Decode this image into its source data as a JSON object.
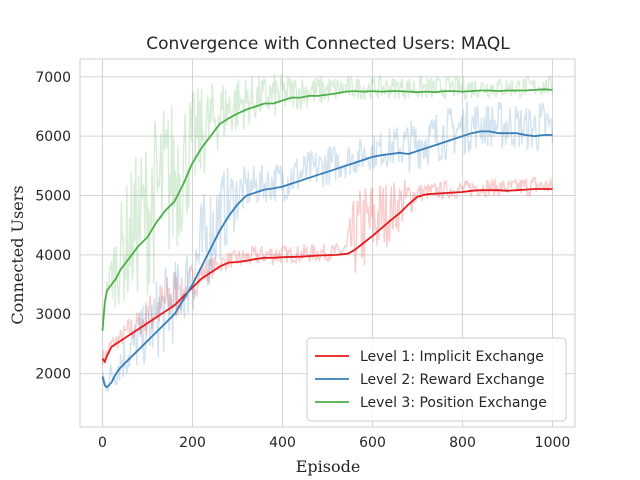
{
  "chart_data": {
    "type": "line",
    "title": "Convergence with Connected Users: MAQL",
    "xlabel": "Episode",
    "ylabel": "Connected Users",
    "xlim": [
      -50,
      1050
    ],
    "ylim": [
      1100,
      7300
    ],
    "xticks": [
      "0",
      "200",
      "400",
      "600",
      "800",
      "1000"
    ],
    "yticks": [
      "2000",
      "3000",
      "4000",
      "5000",
      "6000",
      "7000"
    ],
    "grid": true,
    "legend_position": "lower right",
    "series": [
      {
        "name": "Level 1: Implicit Exchange",
        "color": "#e41a1c",
        "smoothed": [
          [
            0,
            2250
          ],
          [
            5,
            2200
          ],
          [
            10,
            2300
          ],
          [
            20,
            2450
          ],
          [
            40,
            2550
          ],
          [
            60,
            2650
          ],
          [
            80,
            2750
          ],
          [
            100,
            2850
          ],
          [
            120,
            2950
          ],
          [
            140,
            3050
          ],
          [
            160,
            3150
          ],
          [
            180,
            3300
          ],
          [
            200,
            3450
          ],
          [
            220,
            3600
          ],
          [
            240,
            3700
          ],
          [
            260,
            3800
          ],
          [
            280,
            3870
          ],
          [
            300,
            3880
          ],
          [
            320,
            3900
          ],
          [
            340,
            3930
          ],
          [
            360,
            3950
          ],
          [
            380,
            3950
          ],
          [
            400,
            3960
          ],
          [
            440,
            3970
          ],
          [
            480,
            3990
          ],
          [
            520,
            4000
          ],
          [
            545,
            4020
          ],
          [
            560,
            4080
          ],
          [
            580,
            4200
          ],
          [
            600,
            4320
          ],
          [
            620,
            4450
          ],
          [
            640,
            4580
          ],
          [
            660,
            4700
          ],
          [
            680,
            4850
          ],
          [
            700,
            4980
          ],
          [
            720,
            5020
          ],
          [
            740,
            5030
          ],
          [
            760,
            5040
          ],
          [
            780,
            5050
          ],
          [
            800,
            5060
          ],
          [
            820,
            5080
          ],
          [
            840,
            5090
          ],
          [
            860,
            5090
          ],
          [
            880,
            5090
          ],
          [
            900,
            5080
          ],
          [
            920,
            5090
          ],
          [
            940,
            5100
          ],
          [
            960,
            5110
          ],
          [
            980,
            5110
          ],
          [
            1000,
            5110
          ]
        ],
        "raw_band": [
          [
            0,
            1800
          ],
          [
            20,
            2500
          ],
          [
            40,
            2700
          ],
          [
            60,
            2900
          ],
          [
            80,
            3000
          ],
          [
            100,
            3200
          ],
          [
            120,
            3400
          ],
          [
            140,
            3500
          ],
          [
            160,
            3700
          ],
          [
            180,
            3500
          ],
          [
            200,
            3800
          ],
          [
            220,
            3850
          ],
          [
            240,
            3900
          ],
          [
            260,
            3950
          ],
          [
            280,
            4000
          ],
          [
            300,
            4050
          ],
          [
            340,
            4100
          ],
          [
            380,
            4150
          ],
          [
            420,
            4100
          ],
          [
            460,
            4150
          ],
          [
            500,
            4100
          ],
          [
            540,
            4200
          ],
          [
            560,
            4800
          ],
          [
            580,
            5000
          ],
          [
            600,
            5100
          ],
          [
            640,
            5100
          ],
          [
            680,
            5200
          ],
          [
            720,
            5150
          ],
          [
            760,
            5200
          ],
          [
            800,
            5200
          ],
          [
            840,
            5250
          ],
          [
            880,
            5200
          ],
          [
            920,
            5250
          ],
          [
            960,
            5300
          ],
          [
            1000,
            5200
          ]
        ]
      },
      {
        "name": "Level 2: Reward Exchange",
        "color": "#377eb8",
        "smoothed": [
          [
            0,
            1950
          ],
          [
            5,
            1800
          ],
          [
            10,
            1770
          ],
          [
            20,
            1850
          ],
          [
            30,
            2000
          ],
          [
            40,
            2100
          ],
          [
            60,
            2250
          ],
          [
            80,
            2400
          ],
          [
            100,
            2550
          ],
          [
            120,
            2700
          ],
          [
            140,
            2850
          ],
          [
            160,
            3000
          ],
          [
            180,
            3250
          ],
          [
            200,
            3500
          ],
          [
            220,
            3800
          ],
          [
            240,
            4100
          ],
          [
            260,
            4400
          ],
          [
            280,
            4650
          ],
          [
            300,
            4850
          ],
          [
            320,
            5000
          ],
          [
            340,
            5050
          ],
          [
            360,
            5100
          ],
          [
            380,
            5120
          ],
          [
            400,
            5150
          ],
          [
            420,
            5200
          ],
          [
            440,
            5250
          ],
          [
            460,
            5300
          ],
          [
            480,
            5350
          ],
          [
            500,
            5400
          ],
          [
            520,
            5450
          ],
          [
            540,
            5500
          ],
          [
            560,
            5550
          ],
          [
            580,
            5600
          ],
          [
            600,
            5650
          ],
          [
            620,
            5680
          ],
          [
            640,
            5700
          ],
          [
            660,
            5720
          ],
          [
            680,
            5700
          ],
          [
            700,
            5750
          ],
          [
            720,
            5800
          ],
          [
            740,
            5850
          ],
          [
            760,
            5900
          ],
          [
            780,
            5950
          ],
          [
            800,
            6000
          ],
          [
            820,
            6050
          ],
          [
            840,
            6080
          ],
          [
            860,
            6080
          ],
          [
            880,
            6050
          ],
          [
            900,
            6050
          ],
          [
            920,
            6050
          ],
          [
            940,
            6020
          ],
          [
            960,
            6000
          ],
          [
            980,
            6020
          ],
          [
            1000,
            6020
          ]
        ],
        "raw_band": [
          [
            0,
            1600
          ],
          [
            20,
            2200
          ],
          [
            40,
            2500
          ],
          [
            60,
            2700
          ],
          [
            80,
            2900
          ],
          [
            100,
            3100
          ],
          [
            120,
            3400
          ],
          [
            140,
            3600
          ],
          [
            160,
            3700
          ],
          [
            180,
            3800
          ],
          [
            200,
            4300
          ],
          [
            220,
            4700
          ],
          [
            240,
            5000
          ],
          [
            260,
            5200
          ],
          [
            280,
            5300
          ],
          [
            300,
            5350
          ],
          [
            340,
            5400
          ],
          [
            380,
            5450
          ],
          [
            420,
            5600
          ],
          [
            460,
            5650
          ],
          [
            500,
            5750
          ],
          [
            540,
            5800
          ],
          [
            580,
            5900
          ],
          [
            620,
            6000
          ],
          [
            660,
            6100
          ],
          [
            700,
            6200
          ],
          [
            740,
            6300
          ],
          [
            780,
            6400
          ],
          [
            820,
            6500
          ],
          [
            860,
            6450
          ],
          [
            900,
            6500
          ],
          [
            940,
            6400
          ],
          [
            980,
            6500
          ],
          [
            1000,
            6400
          ]
        ]
      },
      {
        "name": "Level 3: Position Exchange",
        "color": "#4daf4a",
        "smoothed": [
          [
            0,
            2720
          ],
          [
            5,
            3200
          ],
          [
            10,
            3400
          ],
          [
            20,
            3500
          ],
          [
            30,
            3600
          ],
          [
            40,
            3750
          ],
          [
            60,
            3950
          ],
          [
            80,
            4150
          ],
          [
            100,
            4300
          ],
          [
            120,
            4550
          ],
          [
            140,
            4750
          ],
          [
            160,
            4900
          ],
          [
            180,
            5200
          ],
          [
            200,
            5550
          ],
          [
            220,
            5800
          ],
          [
            240,
            6000
          ],
          [
            260,
            6200
          ],
          [
            280,
            6300
          ],
          [
            300,
            6380
          ],
          [
            320,
            6450
          ],
          [
            340,
            6500
          ],
          [
            360,
            6550
          ],
          [
            380,
            6550
          ],
          [
            400,
            6600
          ],
          [
            420,
            6650
          ],
          [
            440,
            6650
          ],
          [
            460,
            6680
          ],
          [
            480,
            6680
          ],
          [
            500,
            6700
          ],
          [
            520,
            6720
          ],
          [
            540,
            6750
          ],
          [
            560,
            6760
          ],
          [
            580,
            6750
          ],
          [
            600,
            6760
          ],
          [
            620,
            6750
          ],
          [
            640,
            6760
          ],
          [
            660,
            6760
          ],
          [
            680,
            6750
          ],
          [
            700,
            6740
          ],
          [
            720,
            6750
          ],
          [
            740,
            6740
          ],
          [
            760,
            6760
          ],
          [
            780,
            6760
          ],
          [
            800,
            6750
          ],
          [
            820,
            6760
          ],
          [
            840,
            6770
          ],
          [
            860,
            6770
          ],
          [
            880,
            6760
          ],
          [
            900,
            6770
          ],
          [
            920,
            6770
          ],
          [
            940,
            6770
          ],
          [
            960,
            6780
          ],
          [
            980,
            6790
          ],
          [
            1000,
            6780
          ]
        ],
        "raw_band": [
          [
            0,
            2900
          ],
          [
            20,
            4000
          ],
          [
            40,
            4600
          ],
          [
            60,
            5100
          ],
          [
            80,
            5400
          ],
          [
            100,
            5700
          ],
          [
            120,
            6000
          ],
          [
            140,
            6200
          ],
          [
            160,
            6300
          ],
          [
            180,
            6400
          ],
          [
            200,
            6500
          ],
          [
            220,
            6600
          ],
          [
            240,
            6700
          ],
          [
            260,
            6800
          ],
          [
            280,
            6850
          ],
          [
            300,
            6900
          ],
          [
            340,
            6900
          ],
          [
            380,
            6950
          ],
          [
            420,
            6950
          ],
          [
            460,
            6950
          ],
          [
            500,
            6950
          ],
          [
            540,
            6950
          ],
          [
            580,
            6950
          ],
          [
            620,
            6950
          ],
          [
            660,
            6950
          ],
          [
            700,
            6950
          ],
          [
            740,
            6950
          ],
          [
            780,
            6950
          ],
          [
            820,
            6950
          ],
          [
            860,
            6950
          ],
          [
            900,
            6950
          ],
          [
            940,
            6950
          ],
          [
            980,
            6950
          ],
          [
            1000,
            6950
          ]
        ]
      }
    ]
  }
}
